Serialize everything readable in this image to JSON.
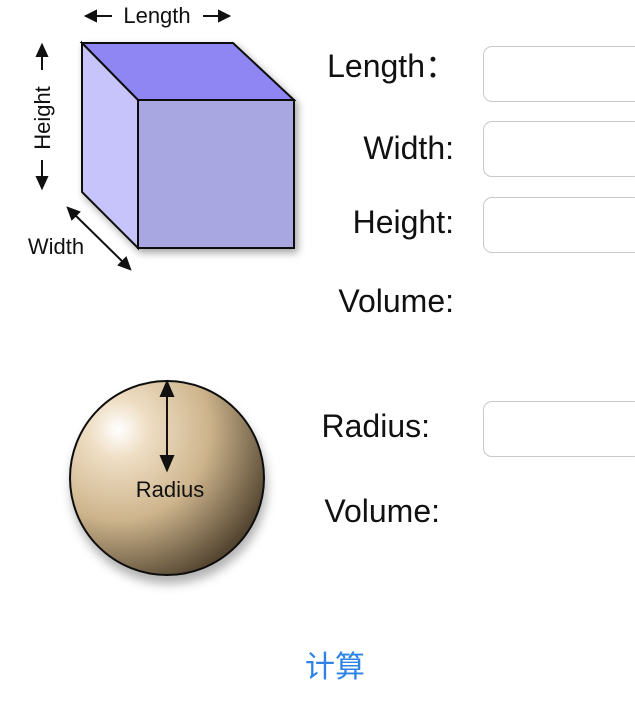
{
  "cube_diagram": {
    "length_label": "Length",
    "height_label": "Height",
    "width_label": "Width",
    "top_color": "#8f86f3",
    "left_color": "#c6c4fb",
    "front_color": "#a8a7e2"
  },
  "sphere_diagram": {
    "radius_label": "Radius",
    "base_color": "#cdb48c"
  },
  "cuboid_form": {
    "length_label": "Length：",
    "width_label": "Width:",
    "height_label": "Height:",
    "volume_label": "Volume:",
    "length_value": "",
    "width_value": "",
    "height_value": ""
  },
  "sphere_form": {
    "radius_label": "Radius:",
    "volume_label": "Volume:",
    "radius_value": ""
  },
  "calculate_button": {
    "label": "计算",
    "color": "#2d84e6"
  }
}
